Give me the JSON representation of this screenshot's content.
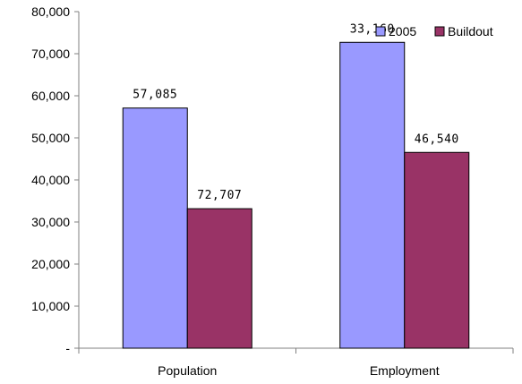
{
  "chart_data": {
    "type": "bar",
    "title": "",
    "xlabel": "",
    "ylabel": "",
    "categories": [
      "Population",
      "Employment"
    ],
    "series": [
      {
        "name": "2005",
        "values": [
          57085,
          72707
        ],
        "color": "#9999ff"
      },
      {
        "name": "Buildout",
        "values": [
          33160,
          46540
        ],
        "color": "#993366"
      }
    ],
    "data_labels": [
      [
        "57,085",
        "33,160"
      ],
      [
        "72,707",
        "46,540"
      ]
    ],
    "ylim": [
      0,
      80000
    ],
    "yticks": [
      0,
      10000,
      20000,
      30000,
      40000,
      50000,
      60000,
      70000,
      80000
    ],
    "ytick_labels": [
      "-",
      "10,000",
      "20,000",
      "30,000",
      "40,000",
      "50,000",
      "60,000",
      "70,000",
      "80,000"
    ],
    "grid": false,
    "legend_position": "top-right",
    "axis_color": "#808080",
    "bar_border_color": "#000000"
  }
}
